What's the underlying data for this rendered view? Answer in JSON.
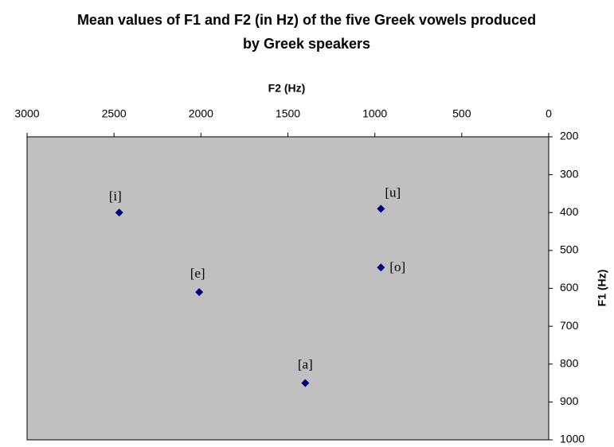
{
  "chart_data": {
    "type": "scatter",
    "title": "Mean values of F1 and F2 (in Hz) of the five Greek vowels produced by Greek speakers",
    "x_label": "F2 (Hz)",
    "y_label": "F1 (Hz)",
    "series": [
      {
        "x": [
          2470,
          2010,
          1400,
          965,
          965
        ],
        "values": [
          400,
          610,
          850,
          390,
          545
        ],
        "point_labels": [
          "[i]",
          "[e]",
          "[a]",
          "[u]",
          "[o]"
        ],
        "color": "#000080"
      }
    ],
    "xlim": [
      3000,
      0
    ],
    "xticks": [
      3000,
      2500,
      2000,
      1500,
      1000,
      500,
      0
    ],
    "ylim": [
      1000,
      200
    ],
    "yticks": [
      200,
      300,
      400,
      500,
      600,
      700,
      800,
      900,
      1000
    ],
    "plot_background": "#c0c0c0"
  }
}
